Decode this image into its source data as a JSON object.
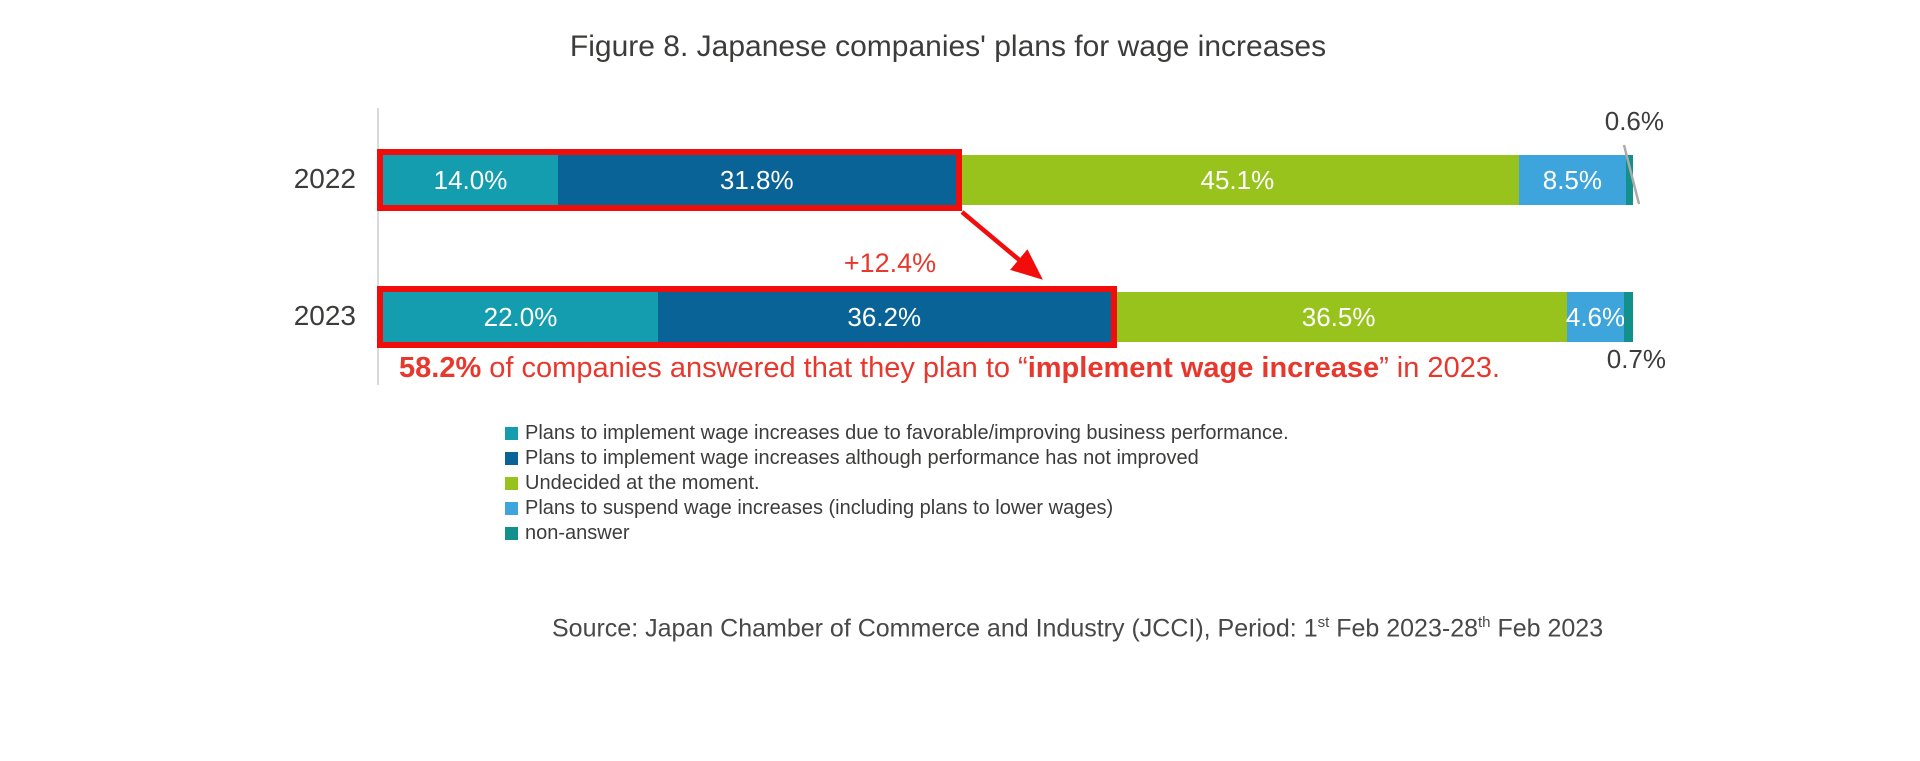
{
  "title": "Figure 8. Japanese companies' plans for wage increases",
  "chart_data": {
    "type": "bar",
    "variant": "horizontal-stacked",
    "unit": "%",
    "xlim": [
      0,
      100
    ],
    "grid": false,
    "legend_position": "bottom-left",
    "categories": [
      "2022",
      "2023"
    ],
    "series": [
      {
        "name": "Plans to implement wage increases due to favorable/improving business performance.",
        "color": "#149DAE",
        "values": [
          14.0,
          22.0
        ]
      },
      {
        "name": "Plans to implement wage increases although performance has not improved",
        "color": "#0A6397",
        "values": [
          31.8,
          36.2
        ]
      },
      {
        "name": "Undecided at the moment.",
        "color": "#97C31C",
        "values": [
          45.1,
          36.5
        ]
      },
      {
        "name": "Plans to suspend wage increases (including plans to lower wages)",
        "color": "#3DA5DC",
        "values": [
          8.5,
          4.6
        ]
      },
      {
        "name": "non-answer",
        "color": "#12908C",
        "values": [
          0.6,
          0.7
        ]
      }
    ],
    "inside_label_min_value": 4,
    "highlight": {
      "series_span": [
        0,
        1
      ],
      "totals": [
        "45.8%",
        "58.2%"
      ],
      "color": "#F20D0D"
    }
  },
  "annotations": {
    "delta_label": "+12.4%",
    "outside_label_2022": "0.6%",
    "outside_label_2023": "0.7%",
    "note": {
      "pct_bold": "58.2%",
      "mid": " of companies answered that they plan to “",
      "quote_bold": "implement wage increase",
      "end": "” in 2023.",
      "color": "#E8382E"
    }
  },
  "source": {
    "part1": "Source: Japan Chamber of Commerce and Industry (JCCI), Period: 1",
    "sup1": "st",
    "part2": " Feb 2023-28",
    "sup2": "th",
    "part3": " Feb 2023"
  }
}
